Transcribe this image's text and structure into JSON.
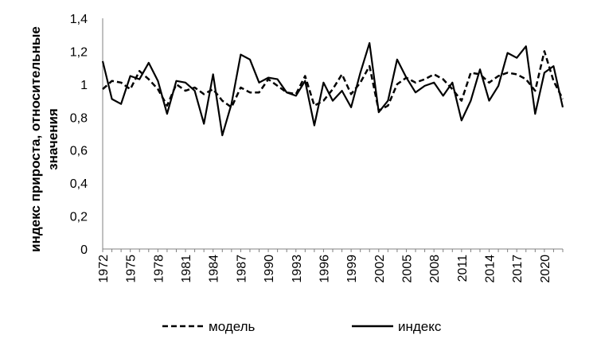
{
  "chart_data": {
    "type": "line",
    "title": "",
    "xlabel": "",
    "ylabel_lines": [
      "индекс прироста, относительные",
      "значения"
    ],
    "ylim": [
      0,
      1.4
    ],
    "y_ticks": [
      "0",
      "0,2",
      "0,4",
      "0,6",
      "0,8",
      "1",
      "1,2",
      "1,4"
    ],
    "x_ticks": [
      "1972",
      "1975",
      "1978",
      "1981",
      "1984",
      "1987",
      "1990",
      "1993",
      "1996",
      "1999",
      "2002",
      "2005",
      "2008",
      "2011",
      "2014",
      "2017",
      "2020"
    ],
    "grid": false,
    "legend_position": "bottom",
    "x": [
      1972,
      1973,
      1974,
      1975,
      1976,
      1977,
      1978,
      1979,
      1980,
      1981,
      1982,
      1983,
      1984,
      1985,
      1986,
      1987,
      1988,
      1989,
      1990,
      1991,
      1992,
      1993,
      1994,
      1995,
      1996,
      1997,
      1998,
      1999,
      2000,
      2001,
      2002,
      2003,
      2004,
      2005,
      2006,
      2007,
      2008,
      2009,
      2010,
      2011,
      2012,
      2013,
      2014,
      2015,
      2016,
      2017,
      2018,
      2019,
      2020,
      2021,
      2022
    ],
    "series": [
      {
        "name": "модель",
        "style": "dashed",
        "values": [
          0.97,
          1.02,
          1.01,
          0.97,
          1.08,
          1.03,
          0.97,
          0.87,
          1.0,
          0.96,
          0.98,
          0.94,
          0.97,
          0.9,
          0.86,
          0.98,
          0.95,
          0.95,
          1.03,
          0.99,
          0.95,
          0.94,
          1.05,
          0.87,
          0.9,
          0.97,
          1.06,
          0.94,
          1.01,
          1.11,
          0.84,
          0.87,
          1.0,
          1.04,
          1.01,
          1.03,
          1.06,
          1.03,
          0.97,
          0.9,
          1.07,
          1.06,
          1.01,
          1.05,
          1.07,
          1.06,
          1.03,
          0.96,
          1.2,
          1.02,
          0.91
        ]
      },
      {
        "name": "индекс",
        "style": "solid",
        "values": [
          1.14,
          0.91,
          0.88,
          1.05,
          1.03,
          1.13,
          1.02,
          0.82,
          1.02,
          1.01,
          0.96,
          0.76,
          1.06,
          0.69,
          0.88,
          1.18,
          1.15,
          1.01,
          1.04,
          1.03,
          0.95,
          0.93,
          1.02,
          0.75,
          1.01,
          0.9,
          0.96,
          0.86,
          1.07,
          1.25,
          0.83,
          0.9,
          1.15,
          1.04,
          0.95,
          0.99,
          1.01,
          0.93,
          1.01,
          0.78,
          0.9,
          1.09,
          0.9,
          0.99,
          1.19,
          1.16,
          1.23,
          0.82,
          1.07,
          1.11,
          0.86
        ]
      }
    ]
  }
}
